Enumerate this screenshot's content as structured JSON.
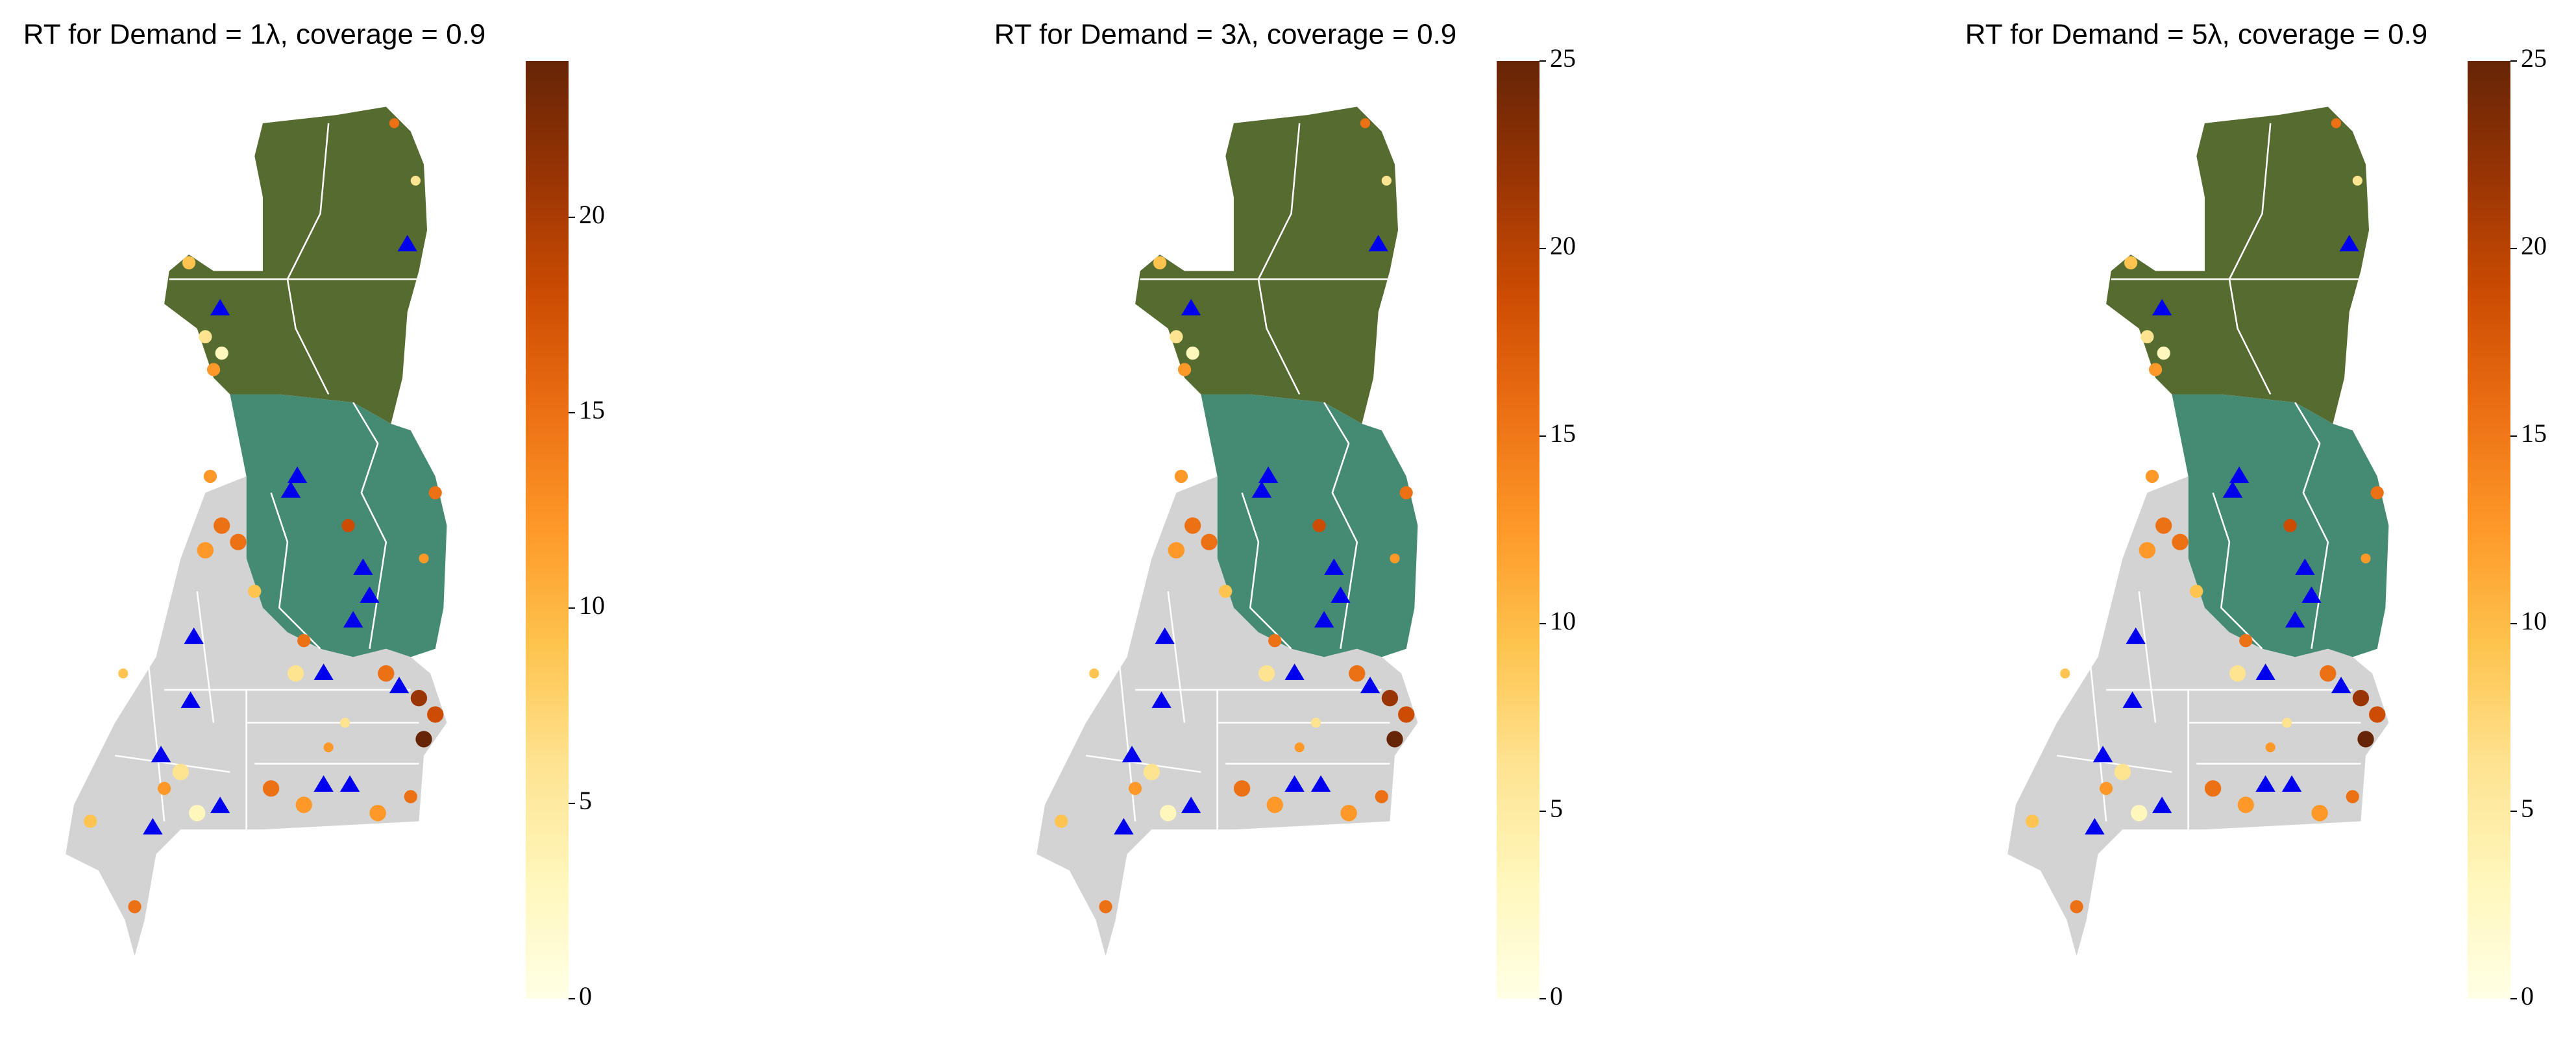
{
  "chart_data": [
    {
      "type": "map",
      "title": "RT for Demand = 1λ, coverage = 0.9",
      "clim": [
        0,
        24
      ],
      "cticks": [
        0,
        5,
        10,
        15,
        20
      ],
      "colors": [
        "#ffffe5",
        "#fff7bc",
        "#fee391",
        "#fec44f",
        "#fe9929",
        "#ec7014",
        "#cc4c02",
        "#993404",
        "#662506"
      ]
    },
    {
      "type": "map",
      "title": "RT for Demand = 3λ, coverage = 0.9",
      "clim": [
        0,
        25
      ],
      "cticks": [
        0,
        5,
        10,
        15,
        20,
        25
      ],
      "colors": [
        "#ffffe5",
        "#fff7bc",
        "#fee391",
        "#fec44f",
        "#fe9929",
        "#ec7014",
        "#cc4c02",
        "#993404",
        "#662506"
      ]
    },
    {
      "type": "map",
      "title": "RT for Demand = 5λ, coverage = 0.9",
      "clim": [
        0,
        25
      ],
      "cticks": [
        0,
        5,
        10,
        15,
        20,
        25
      ],
      "colors": [
        "#ffffe5",
        "#fff7bc",
        "#fee391",
        "#fec44f",
        "#fe9929",
        "#ec7014",
        "#cc4c02",
        "#993404",
        "#662506"
      ]
    }
  ]
}
